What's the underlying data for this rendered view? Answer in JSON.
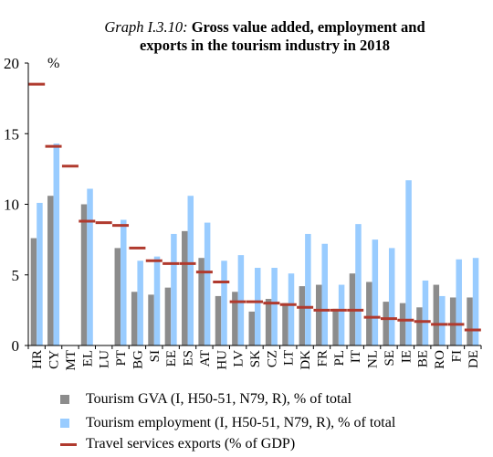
{
  "chart_data": {
    "type": "bar",
    "title_prefix": "Graph I.3.10:",
    "title_line1": "Gross value added, employment and",
    "title_line2": "exports in the tourism industry in 2018",
    "ylabel": "%",
    "ylim": [
      0,
      20
    ],
    "yticks": [
      0,
      5,
      10,
      15,
      20
    ],
    "grid": false,
    "legend_position": "bottom",
    "categories": [
      "HR",
      "CY",
      "MT",
      "EL",
      "LU",
      "PT",
      "BG",
      "SI",
      "EE",
      "ES",
      "AT",
      "HU",
      "LV",
      "SK",
      "CZ",
      "LT",
      "DK",
      "FR",
      "PL",
      "IT",
      "NL",
      "SE",
      "IE",
      "BE",
      "RO",
      "FI",
      "DE"
    ],
    "series": [
      {
        "name": "Tourism GVA (I, H50-51, N79, R), % of total",
        "kind": "bar",
        "color": "#8c8c8c",
        "values": [
          7.6,
          10.6,
          null,
          10.0,
          null,
          6.9,
          3.8,
          3.6,
          4.1,
          8.1,
          6.2,
          3.5,
          3.8,
          2.4,
          3.3,
          3.0,
          4.2,
          4.3,
          2.6,
          5.1,
          4.5,
          3.1,
          3.0,
          2.7,
          4.3,
          3.4,
          3.4
        ]
      },
      {
        "name": "Tourism employment (I, H50-51, N79, R), % of total",
        "kind": "bar",
        "color": "#99ccff",
        "values": [
          10.1,
          14.3,
          null,
          11.1,
          null,
          8.9,
          6.0,
          6.3,
          7.9,
          10.6,
          8.7,
          6.0,
          6.4,
          5.5,
          5.5,
          5.1,
          7.9,
          7.2,
          4.3,
          8.6,
          7.5,
          6.9,
          11.7,
          4.6,
          3.5,
          6.1,
          6.2
        ]
      },
      {
        "name": "Travel services exports (% of GDP)",
        "kind": "marker",
        "color": "#b03a2e",
        "values": [
          18.5,
          14.1,
          12.7,
          8.8,
          8.7,
          8.5,
          6.9,
          6.0,
          5.8,
          5.8,
          5.2,
          4.5,
          3.1,
          3.1,
          3.0,
          2.9,
          2.7,
          2.5,
          2.5,
          2.5,
          2.0,
          1.9,
          1.8,
          1.7,
          1.5,
          1.5,
          1.1
        ]
      }
    ]
  }
}
